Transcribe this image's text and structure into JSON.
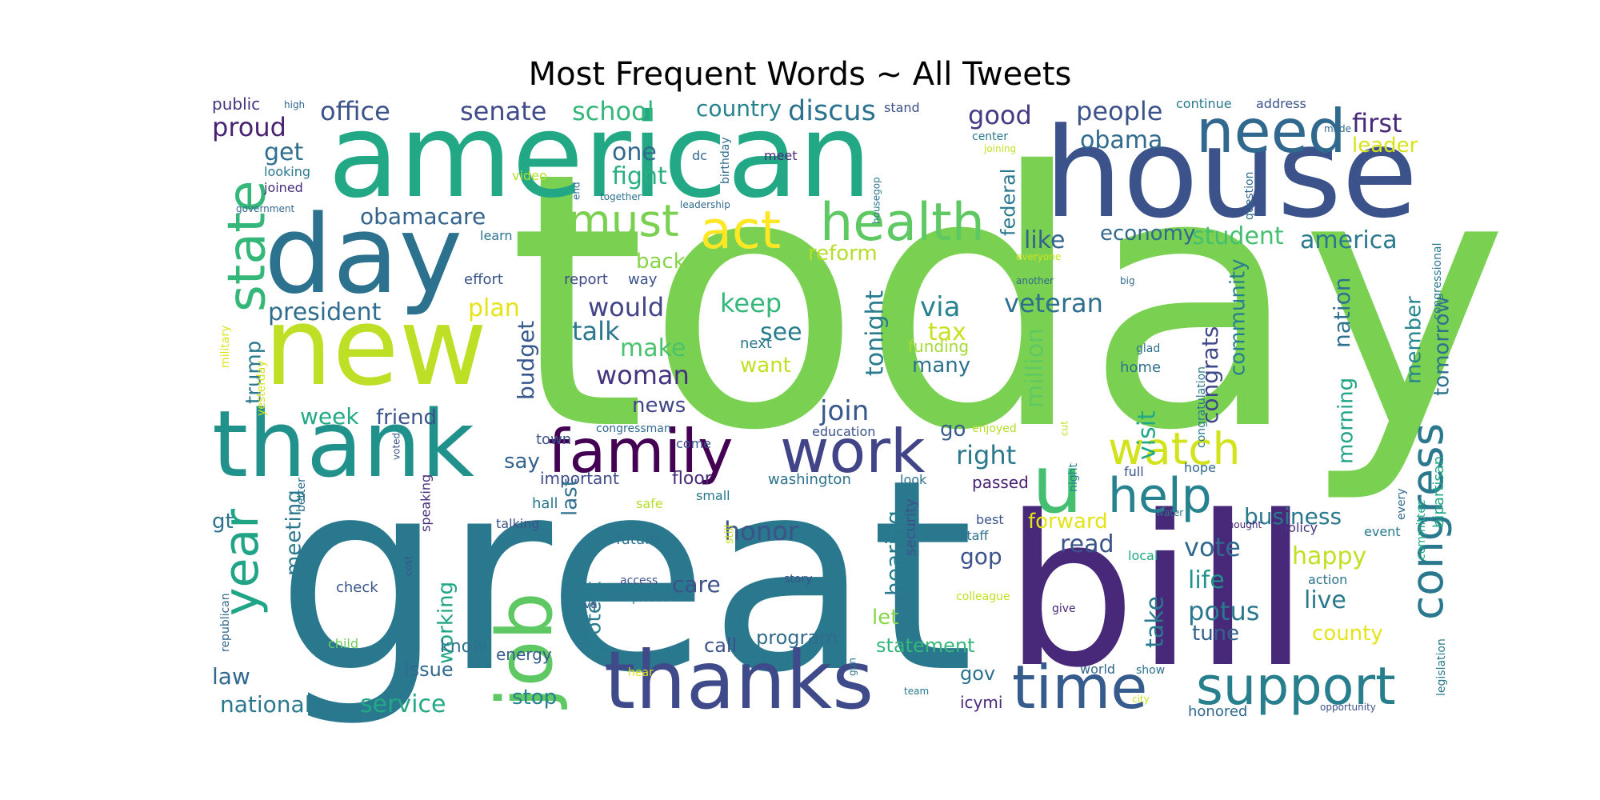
{
  "chart_data": {
    "type": "wordcloud",
    "title": "Most Frequent Words ~ All Tweets",
    "words": [
      {
        "text": "today",
        "color": "#7ad151"
      },
      {
        "text": "great",
        "color": "#2a788e"
      },
      {
        "text": "bill",
        "color": "#482878"
      },
      {
        "text": "house",
        "color": "#3b528b"
      },
      {
        "text": "american",
        "color": "#22a884"
      },
      {
        "text": "new",
        "color": "#bddf26"
      },
      {
        "text": "day",
        "color": "#2c728e"
      },
      {
        "text": "thank",
        "color": "#21918c"
      },
      {
        "text": "thanks",
        "color": "#3e4a89"
      },
      {
        "text": "job",
        "color": "#5ec962"
      },
      {
        "text": "family",
        "color": "#440154"
      },
      {
        "text": "work",
        "color": "#414487"
      },
      {
        "text": "u",
        "color": "#44bf70"
      },
      {
        "text": "need",
        "color": "#31688e"
      },
      {
        "text": "state",
        "color": "#35b779"
      },
      {
        "text": "health",
        "color": "#5ec962"
      },
      {
        "text": "act",
        "color": "#fde725"
      },
      {
        "text": "must",
        "color": "#7ad151"
      },
      {
        "text": "time",
        "color": "#365c8d"
      },
      {
        "text": "support",
        "color": "#277f8e"
      },
      {
        "text": "year",
        "color": "#20a486"
      },
      {
        "text": "help",
        "color": "#26828e"
      },
      {
        "text": "watch",
        "color": "#d2e21b"
      },
      {
        "text": "congress",
        "color": "#2a788e"
      },
      {
        "text": "office",
        "color": "#3b528b"
      },
      {
        "text": "senate",
        "color": "#3e4a89"
      },
      {
        "text": "school",
        "color": "#35b779"
      },
      {
        "text": "country",
        "color": "#26828e"
      },
      {
        "text": "discus",
        "color": "#2c728e"
      },
      {
        "text": "good",
        "color": "#443983"
      },
      {
        "text": "people",
        "color": "#3b528b"
      },
      {
        "text": "first",
        "color": "#482878"
      },
      {
        "text": "public",
        "color": "#46337f"
      },
      {
        "text": "proud",
        "color": "#482173"
      },
      {
        "text": "get",
        "color": "#2e6e8e"
      },
      {
        "text": "one",
        "color": "#31688e"
      },
      {
        "text": "fight",
        "color": "#29af7f"
      },
      {
        "text": "obama",
        "color": "#306a8e"
      },
      {
        "text": "leader",
        "color": "#d8e219"
      },
      {
        "text": "obamacare",
        "color": "#33638d"
      },
      {
        "text": "student",
        "color": "#44bf70"
      },
      {
        "text": "america",
        "color": "#2a788e"
      },
      {
        "text": "president",
        "color": "#2f6c8e"
      },
      {
        "text": "plan",
        "color": "#e5e419"
      },
      {
        "text": "would",
        "color": "#414487"
      },
      {
        "text": "economy",
        "color": "#31688e"
      },
      {
        "text": "like",
        "color": "#33638d"
      },
      {
        "text": "reform",
        "color": "#b5de2b"
      },
      {
        "text": "back",
        "color": "#86d549"
      },
      {
        "text": "veteran",
        "color": "#2e6e8e"
      },
      {
        "text": "via",
        "color": "#26828e"
      },
      {
        "text": "keep",
        "color": "#35b779"
      },
      {
        "text": "talk",
        "color": "#2a788e"
      },
      {
        "text": "see",
        "color": "#287c8e"
      },
      {
        "text": "make",
        "color": "#4ac16d"
      },
      {
        "text": "tax",
        "color": "#c8e020"
      },
      {
        "text": "want",
        "color": "#c2df23"
      },
      {
        "text": "woman",
        "color": "#46337f"
      },
      {
        "text": "tonight",
        "color": "#287c8e"
      },
      {
        "text": "budget",
        "color": "#38588c"
      },
      {
        "text": "million",
        "color": "#5ec962"
      },
      {
        "text": "many",
        "color": "#2c728e"
      },
      {
        "text": "funding",
        "color": "#a5db36"
      },
      {
        "text": "trump",
        "color": "#2a788e"
      },
      {
        "text": "week",
        "color": "#22a884"
      },
      {
        "text": "friend",
        "color": "#3b528b"
      },
      {
        "text": "news",
        "color": "#404688"
      },
      {
        "text": "join",
        "color": "#38588c"
      },
      {
        "text": "go",
        "color": "#365c8d"
      },
      {
        "text": "right",
        "color": "#2a788e"
      },
      {
        "text": "community",
        "color": "#277f8e"
      },
      {
        "text": "congrats",
        "color": "#3f4788"
      },
      {
        "text": "visit",
        "color": "#22a884"
      },
      {
        "text": "nation",
        "color": "#2c728e"
      },
      {
        "text": "member",
        "color": "#25858e"
      },
      {
        "text": "tomorrow",
        "color": "#2c728e"
      },
      {
        "text": "morning",
        "color": "#20a486"
      },
      {
        "text": "say",
        "color": "#33638d"
      },
      {
        "text": "important",
        "color": "#3e4a89"
      },
      {
        "text": "floor",
        "color": "#482878"
      },
      {
        "text": "washington",
        "color": "#2c728e"
      },
      {
        "text": "passed",
        "color": "#482173"
      },
      {
        "text": "business",
        "color": "#2a788e"
      },
      {
        "text": "honor",
        "color": "#3b528b"
      },
      {
        "text": "hearing",
        "color": "#287c8e"
      },
      {
        "text": "read",
        "color": "#3b528b"
      },
      {
        "text": "forward",
        "color": "#e2e418"
      },
      {
        "text": "vote",
        "color": "#31688e"
      },
      {
        "text": "happy",
        "color": "#c2df23"
      },
      {
        "text": "gop",
        "color": "#3b528b"
      },
      {
        "text": "life",
        "color": "#21918c"
      },
      {
        "text": "potus",
        "color": "#2a788e"
      },
      {
        "text": "live",
        "color": "#2a788e"
      },
      {
        "text": "care",
        "color": "#3b528b"
      },
      {
        "text": "let",
        "color": "#86d549"
      },
      {
        "text": "take",
        "color": "#2a788e"
      },
      {
        "text": "county",
        "color": "#e5e419"
      },
      {
        "text": "tune",
        "color": "#33638d"
      },
      {
        "text": "program",
        "color": "#2f6c8e"
      },
      {
        "text": "statement",
        "color": "#35b779"
      },
      {
        "text": "call",
        "color": "#3b528b"
      },
      {
        "text": "gov",
        "color": "#2c728e"
      },
      {
        "text": "meeting",
        "color": "#2a788e"
      },
      {
        "text": "working",
        "color": "#20a486"
      },
      {
        "text": "know",
        "color": "#2c728e"
      },
      {
        "text": "issue",
        "color": "#31688e"
      },
      {
        "text": "law",
        "color": "#31688e"
      },
      {
        "text": "national",
        "color": "#2a788e"
      },
      {
        "text": "service",
        "color": "#22a884"
      },
      {
        "text": "stop",
        "color": "#26828e"
      },
      {
        "text": "energy",
        "color": "#365c8d"
      },
      {
        "text": "protect",
        "color": "#287c8e"
      },
      {
        "text": "last",
        "color": "#2e6e8e"
      },
      {
        "text": "gt",
        "color": "#2c728e"
      },
      {
        "text": "icymi",
        "color": "#482878"
      },
      {
        "text": "honored",
        "color": "#31688e"
      },
      {
        "text": "federal",
        "color": "#2a788e"
      },
      {
        "text": "security",
        "color": "#3b528b"
      },
      {
        "text": "check",
        "color": "#39568c"
      },
      {
        "text": "child",
        "color": "#6ccd5a"
      },
      {
        "text": "republican",
        "color": "#31688e"
      },
      {
        "text": "military",
        "color": "#dde318"
      },
      {
        "text": "yesterday",
        "color": "#d0e11c"
      },
      {
        "text": "looking",
        "color": "#2a788e"
      },
      {
        "text": "joined",
        "color": "#472d7b"
      },
      {
        "text": "government",
        "color": "#31688e"
      },
      {
        "text": "video",
        "color": "#b5de2b"
      },
      {
        "text": "effort",
        "color": "#39568c"
      },
      {
        "text": "report",
        "color": "#3e4a89"
      },
      {
        "text": "way",
        "color": "#3b528b"
      },
      {
        "text": "learn",
        "color": "#2c728e"
      },
      {
        "text": "meet",
        "color": "#482878"
      },
      {
        "text": "stand",
        "color": "#3b528b"
      },
      {
        "text": "continue",
        "color": "#2a788e"
      },
      {
        "text": "address",
        "color": "#3b528b"
      },
      {
        "text": "high",
        "color": "#31688e"
      },
      {
        "text": "dc",
        "color": "#31688e"
      },
      {
        "text": "end",
        "color": "#31688e"
      },
      {
        "text": "together",
        "color": "#2c728e"
      },
      {
        "text": "leadership",
        "color": "#31688e"
      },
      {
        "text": "birthday",
        "color": "#2e6e8e"
      },
      {
        "text": "center",
        "color": "#2a788e"
      },
      {
        "text": "joining",
        "color": "#c2df23"
      },
      {
        "text": "made",
        "color": "#31688e"
      },
      {
        "text": "housegop",
        "color": "#2a788e"
      },
      {
        "text": "question",
        "color": "#31688e"
      },
      {
        "text": "congressional",
        "color": "#2a788e"
      },
      {
        "text": "everyone",
        "color": "#d0e11c"
      },
      {
        "text": "another",
        "color": "#31688e"
      },
      {
        "text": "big",
        "color": "#31688e"
      },
      {
        "text": "next",
        "color": "#2a788e"
      },
      {
        "text": "glad",
        "color": "#2c728e"
      },
      {
        "text": "home",
        "color": "#2c728e"
      },
      {
        "text": "congratulation",
        "color": "#2a788e"
      },
      {
        "text": "bipartisan",
        "color": "#22a884"
      },
      {
        "text": "committee",
        "color": "#22a884"
      },
      {
        "text": "every",
        "color": "#31688e"
      },
      {
        "text": "event",
        "color": "#2a788e"
      },
      {
        "text": "policy",
        "color": "#46337f"
      },
      {
        "text": "hope",
        "color": "#31688e"
      },
      {
        "text": "full",
        "color": "#3b528b"
      },
      {
        "text": "night",
        "color": "#26828e"
      },
      {
        "text": "cut",
        "color": "#c2df23"
      },
      {
        "text": "enjoyed",
        "color": "#b5de2b"
      },
      {
        "text": "education",
        "color": "#3b528b"
      },
      {
        "text": "come",
        "color": "#3b528b"
      },
      {
        "text": "congressman",
        "color": "#31688e"
      },
      {
        "text": "town",
        "color": "#3b528b"
      },
      {
        "text": "hall",
        "color": "#2a788e"
      },
      {
        "text": "safe",
        "color": "#b5de2b"
      },
      {
        "text": "small",
        "color": "#2a788e"
      },
      {
        "text": "look",
        "color": "#2c728e"
      },
      {
        "text": "talking",
        "color": "#3b528b"
      },
      {
        "text": "future",
        "color": "#2c728e"
      },
      {
        "text": "still",
        "color": "#c8e020"
      },
      {
        "text": "best",
        "color": "#3b528b"
      },
      {
        "text": "staff",
        "color": "#2c728e"
      },
      {
        "text": "local",
        "color": "#22a884"
      },
      {
        "text": "water",
        "color": "#2c728e"
      },
      {
        "text": "thought",
        "color": "#482878"
      },
      {
        "text": "action",
        "color": "#2c728e"
      },
      {
        "text": "access",
        "color": "#3b528b"
      },
      {
        "text": "please",
        "color": "#2a788e"
      },
      {
        "text": "story",
        "color": "#3b528b"
      },
      {
        "text": "va",
        "color": "#3b528b"
      },
      {
        "text": "colleague",
        "color": "#c2df23"
      },
      {
        "text": "give",
        "color": "#482878"
      },
      {
        "text": "cost",
        "color": "#3b528b"
      },
      {
        "text": "voted",
        "color": "#3b528b"
      },
      {
        "text": "better",
        "color": "#2c728e"
      },
      {
        "text": "speaking",
        "color": "#472d7b"
      },
      {
        "text": "legislation",
        "color": "#2a788e"
      },
      {
        "text": "hear",
        "color": "#dde318"
      },
      {
        "text": "gun",
        "color": "#2c728e"
      },
      {
        "text": "team",
        "color": "#2a788e"
      },
      {
        "text": "world",
        "color": "#31688e"
      },
      {
        "text": "show",
        "color": "#2c728e"
      },
      {
        "text": "city",
        "color": "#c8e020"
      },
      {
        "text": "opportunity",
        "color": "#3b528b"
      }
    ]
  }
}
